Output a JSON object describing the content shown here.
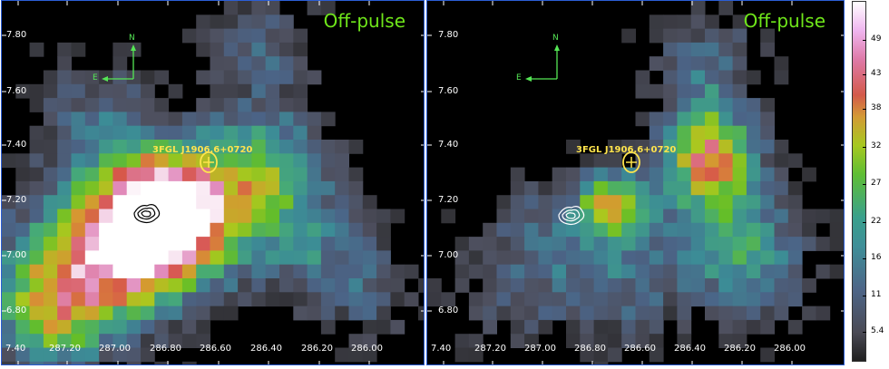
{
  "panels": [
    {
      "id": "left",
      "title": "Off-pulse",
      "source_label": "3FGL J1906.6+0720",
      "compass": {
        "north": "N",
        "east": "E"
      },
      "y_ticks": [
        "7.80",
        "7.60",
        "7.40",
        "7.20",
        "7.00",
        "6.80"
      ],
      "x_ticks": [
        "7.40",
        "287.20",
        "287.00",
        "286.80",
        "286.60",
        "286.40",
        "286.20",
        "286.00"
      ],
      "contour_color": "#000000"
    },
    {
      "id": "right",
      "title": "Off-pulse",
      "source_label": "3FGL J1906.6+0720",
      "compass": {
        "north": "N",
        "east": "E"
      },
      "y_ticks": [
        "7.80",
        "7.60",
        "7.40",
        "7.20",
        "7.00",
        "6.80"
      ],
      "x_ticks": [
        "7.40",
        "287.20",
        "287.00",
        "286.80",
        "286.60",
        "286.40",
        "286.20",
        "286.00"
      ],
      "contour_color": "#ffffff"
    }
  ],
  "colorbar": {
    "ticks": [
      "49",
      "43",
      "38",
      "32",
      "27",
      "22",
      "16",
      "11",
      "5.4"
    ]
  }
}
